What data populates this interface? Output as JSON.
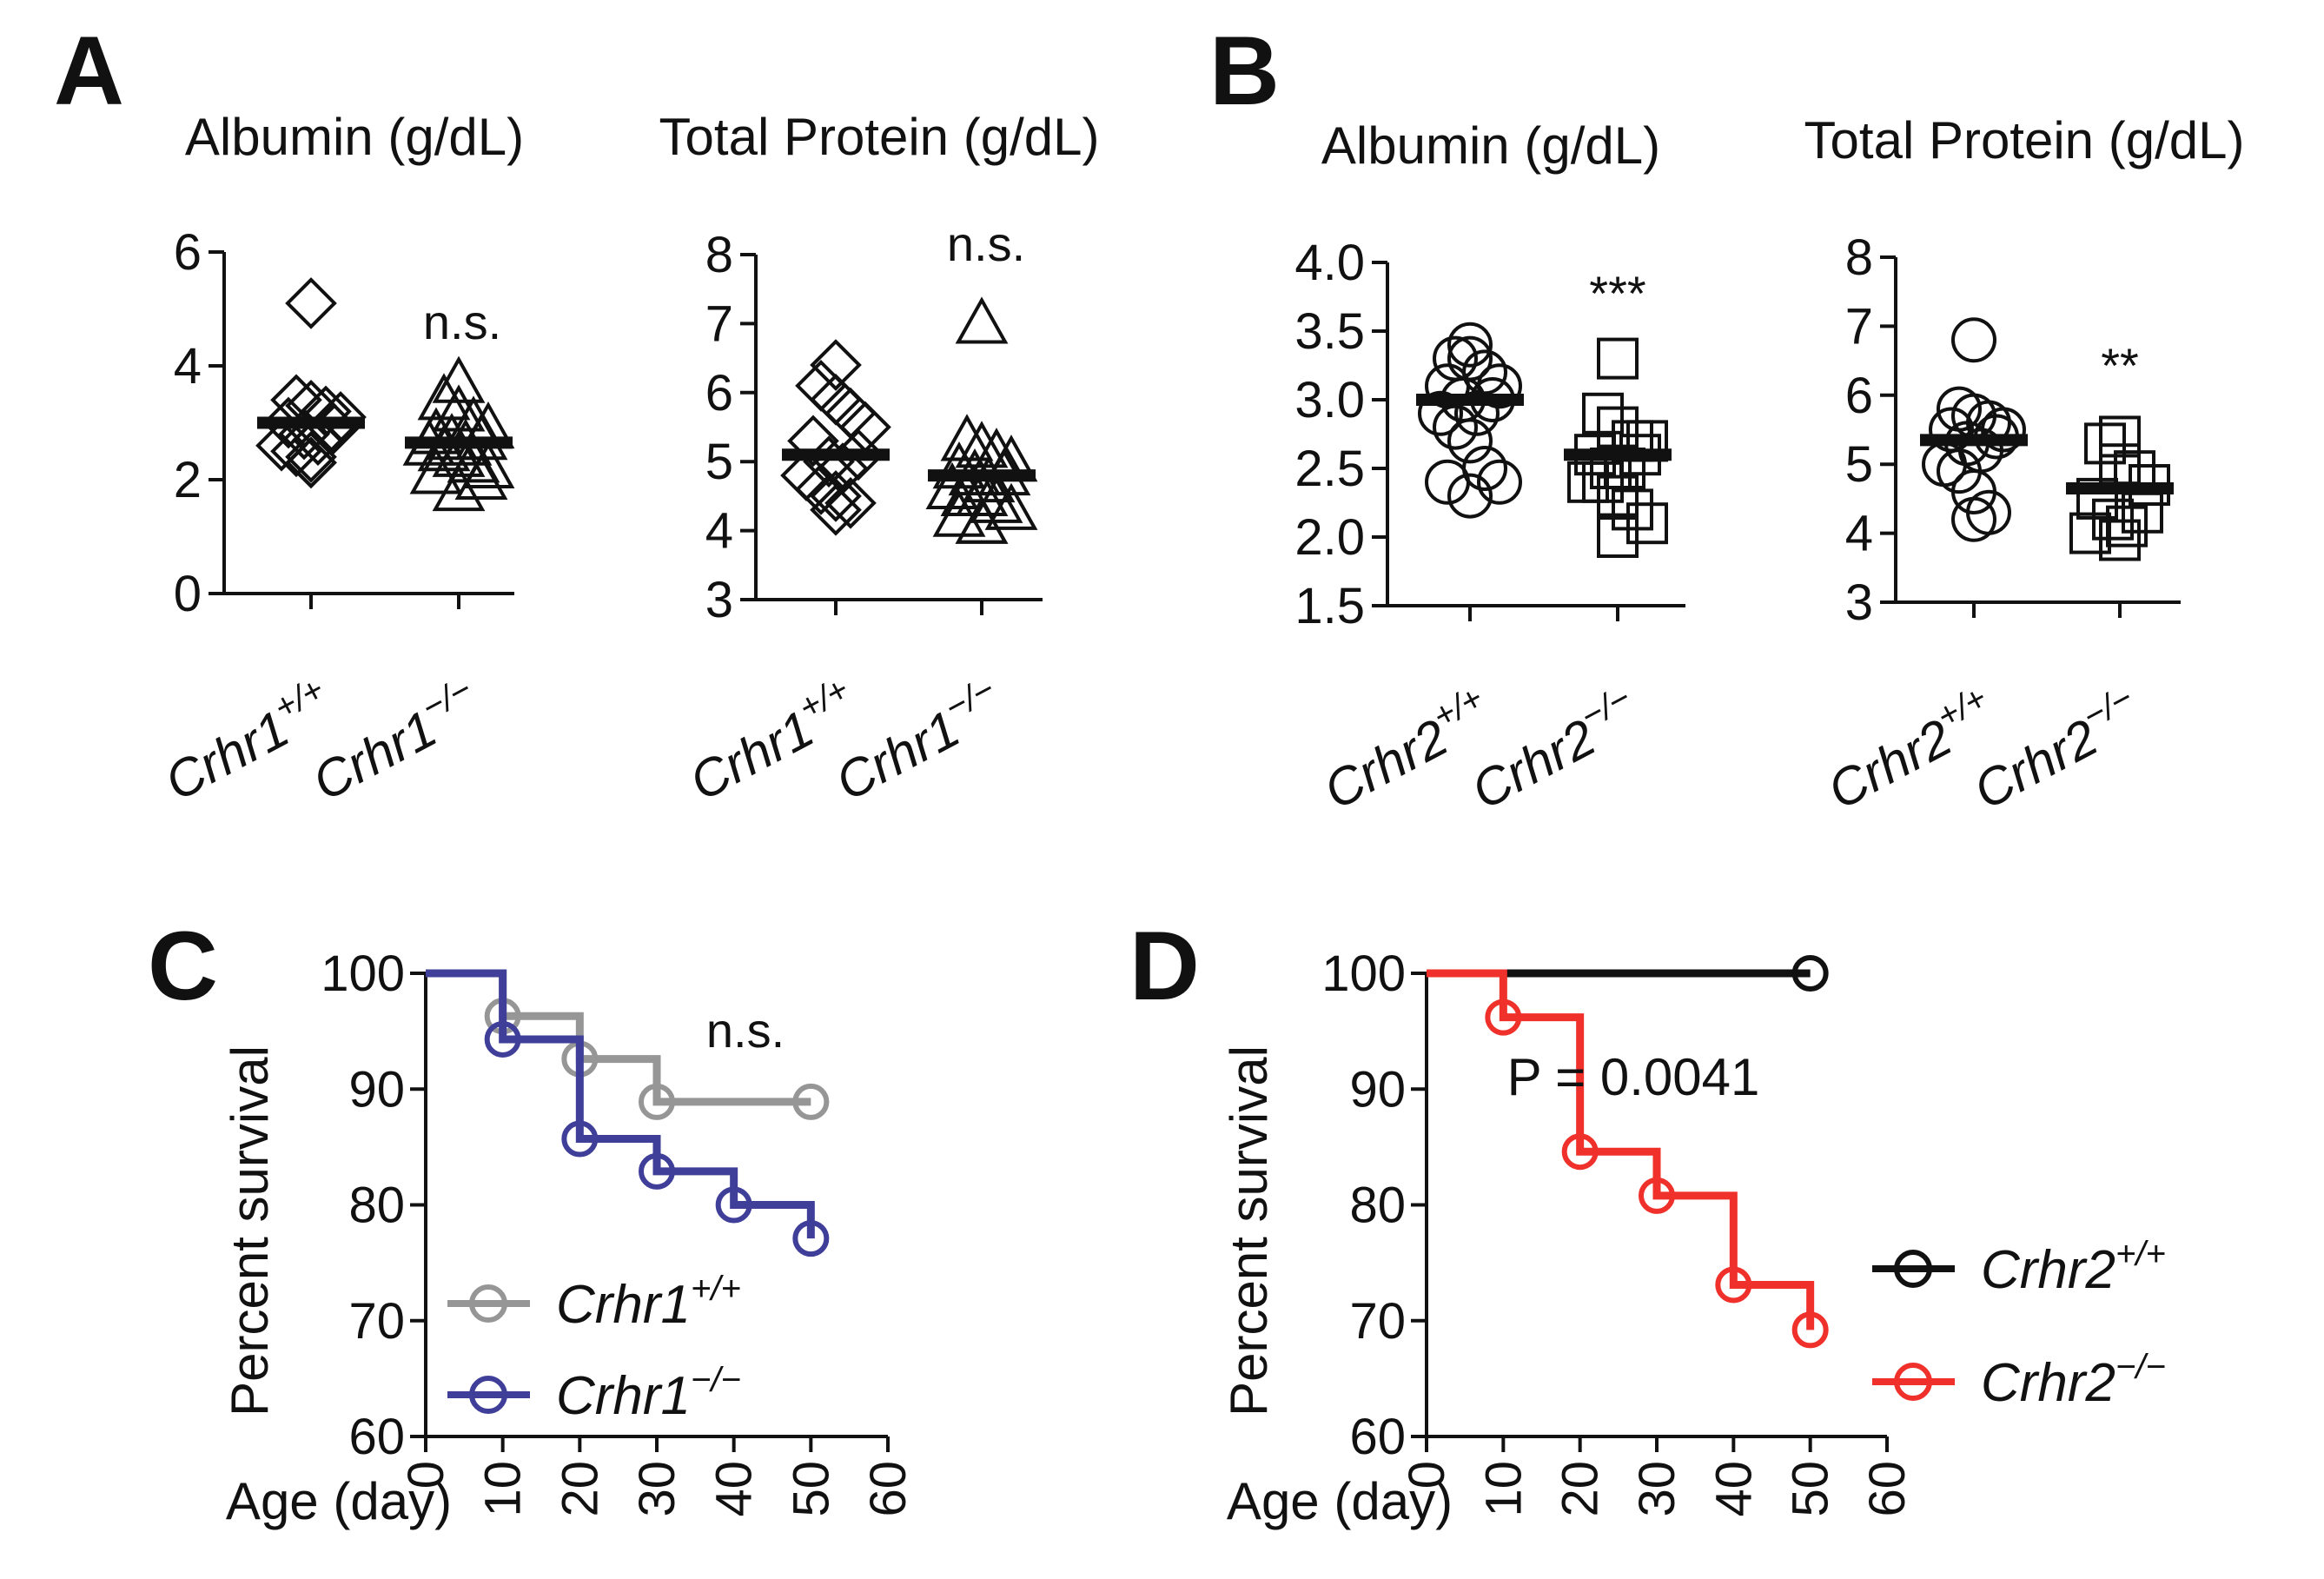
{
  "figure": {
    "panels": [
      {
        "id": "A",
        "letter": "A"
      },
      {
        "id": "B",
        "letter": "B"
      },
      {
        "id": "C",
        "letter": "C"
      },
      {
        "id": "D",
        "letter": "D"
      }
    ]
  },
  "chart_data": [
    {
      "id": "A-albumin",
      "panel": "A",
      "type": "scatter",
      "title": "Albumin (g/dL)",
      "ylim": [
        0,
        6
      ],
      "yticks": [
        "0",
        "2",
        "4",
        "6"
      ],
      "marker": "diamond",
      "groups": [
        {
          "base": "Crhr1",
          "sup": "+/+",
          "mean": 3.0,
          "points": [
            5.1,
            3.4,
            3.3,
            3.2,
            3.1,
            3.0,
            2.9,
            2.8,
            2.7,
            2.6,
            2.5,
            2.4,
            2.3,
            2.3
          ]
        },
        {
          "base": "Crhr1",
          "sup": "−/−",
          "mean": 2.65,
          "points": [
            3.7,
            3.4,
            3.2,
            3.0,
            2.9,
            2.8,
            2.7,
            2.7,
            2.6,
            2.6,
            2.5,
            2.4,
            2.3,
            2.2,
            2.1,
            2.0,
            1.8
          ]
        }
      ],
      "significance": "n.s."
    },
    {
      "id": "A-totalprotein",
      "panel": "A",
      "type": "scatter",
      "title": "Total Protein (g/dL)",
      "ylim": [
        3,
        8
      ],
      "yticks": [
        "3",
        "4",
        "5",
        "6",
        "7",
        "8"
      ],
      "marker_groups": [
        "diamond",
        "triangle"
      ],
      "groups": [
        {
          "base": "Crhr1",
          "sup": "+/+",
          "mean": 5.1,
          "points": [
            6.4,
            6.1,
            5.9,
            5.7,
            5.5,
            5.3,
            5.1,
            5.0,
            4.9,
            4.8,
            4.6,
            4.5,
            4.4,
            4.3
          ]
        },
        {
          "base": "Crhr1",
          "sup": "−/−",
          "mean": 4.8,
          "points": [
            7.0,
            5.3,
            5.2,
            5.1,
            5.0,
            4.9,
            4.8,
            4.8,
            4.7,
            4.6,
            4.5,
            4.5,
            4.4,
            4.3,
            4.2,
            4.1,
            4.1
          ]
        }
      ],
      "significance": "n.s."
    },
    {
      "id": "B-albumin",
      "panel": "B",
      "type": "scatter",
      "title": "Albumin (g/dL)",
      "ylim": [
        1.5,
        4.0
      ],
      "yticks": [
        "1.5",
        "2.0",
        "2.5",
        "3.0",
        "3.5",
        "4.0"
      ],
      "marker_groups": [
        "circle",
        "square"
      ],
      "groups": [
        {
          "base": "Crhr2",
          "sup": "+/+",
          "mean": 3.0,
          "points": [
            3.4,
            3.3,
            3.3,
            3.2,
            3.1,
            3.1,
            3.0,
            3.0,
            2.9,
            2.9,
            2.8,
            2.7,
            2.5,
            2.4,
            2.4,
            2.3
          ]
        },
        {
          "base": "Crhr2",
          "sup": "−/−",
          "mean": 2.6,
          "points": [
            3.3,
            2.9,
            2.8,
            2.7,
            2.7,
            2.6,
            2.6,
            2.5,
            2.5,
            2.4,
            2.4,
            2.3,
            2.2,
            2.1,
            2.0
          ]
        }
      ],
      "significance": "***"
    },
    {
      "id": "B-totalprotein",
      "panel": "B",
      "type": "scatter",
      "title": "Total Protein (g/dL)",
      "ylim": [
        3,
        8
      ],
      "yticks": [
        "3",
        "4",
        "5",
        "6",
        "7",
        "8"
      ],
      "marker_groups": [
        "circle",
        "square"
      ],
      "groups": [
        {
          "base": "Crhr2",
          "sup": "+/+",
          "mean": 5.35,
          "points": [
            6.8,
            5.8,
            5.7,
            5.6,
            5.5,
            5.5,
            5.4,
            5.3,
            5.2,
            5.0,
            4.9,
            4.6,
            4.3,
            4.2
          ]
        },
        {
          "base": "Crhr2",
          "sup": "−/−",
          "mean": 4.65,
          "points": [
            5.4,
            5.3,
            5.0,
            4.9,
            4.7,
            4.5,
            4.3,
            4.2,
            4.1,
            4.0,
            3.9
          ]
        }
      ],
      "significance": "**"
    },
    {
      "id": "C-survival",
      "panel": "C",
      "type": "line",
      "step": true,
      "xlabel": "Age (day)",
      "ylabel": "Percent survival",
      "xlim": [
        0,
        60
      ],
      "ylim": [
        60,
        100
      ],
      "xticks": [
        "0",
        "10",
        "20",
        "30",
        "40",
        "50",
        "60"
      ],
      "yticks": [
        "60",
        "70",
        "80",
        "90",
        "100"
      ],
      "annotation": "n.s.",
      "series": [
        {
          "base": "Crhr1",
          "sup": "+/+",
          "color": "#969696",
          "x": [
            0,
            10,
            20,
            30,
            50
          ],
          "y": [
            100,
            96.3,
            92.6,
            88.9,
            88.9
          ],
          "censored": [
            [
              10,
              96.3
            ],
            [
              20,
              92.6
            ],
            [
              30,
              88.9
            ],
            [
              50,
              88.9
            ]
          ]
        },
        {
          "base": "Crhr1",
          "sup": "−/−",
          "color": "#3f3f99",
          "x": [
            0,
            10,
            20,
            30,
            40,
            50
          ],
          "y": [
            100,
            94.3,
            85.7,
            82.9,
            80.0,
            77.1
          ],
          "censored": [
            [
              10,
              94.3
            ],
            [
              20,
              85.7
            ],
            [
              30,
              82.9
            ],
            [
              40,
              80.0
            ],
            [
              50,
              77.1
            ]
          ]
        }
      ]
    },
    {
      "id": "D-survival",
      "panel": "D",
      "type": "line",
      "step": true,
      "xlabel": "Age (day)",
      "ylabel": "Percent survival",
      "xlim": [
        0,
        60
      ],
      "ylim": [
        60,
        100
      ],
      "xticks": [
        "0",
        "10",
        "20",
        "30",
        "40",
        "50",
        "60"
      ],
      "yticks": [
        "60",
        "70",
        "80",
        "90",
        "100"
      ],
      "annotation": "P = 0.0041",
      "series": [
        {
          "base": "Crhr2",
          "sup": "+/+",
          "color": "#111111",
          "x": [
            0,
            50
          ],
          "y": [
            100,
            100
          ],
          "censored": [
            [
              50,
              100
            ]
          ]
        },
        {
          "base": "Crhr2",
          "sup": "−/−",
          "color": "#f0302a",
          "x": [
            0,
            10,
            20,
            30,
            40,
            50
          ],
          "y": [
            100,
            96.2,
            84.6,
            80.8,
            73.1,
            69.2
          ],
          "censored": [
            [
              10,
              96.2
            ],
            [
              20,
              84.6
            ],
            [
              30,
              80.8
            ],
            [
              40,
              73.1
            ],
            [
              50,
              69.2
            ]
          ]
        }
      ]
    }
  ]
}
